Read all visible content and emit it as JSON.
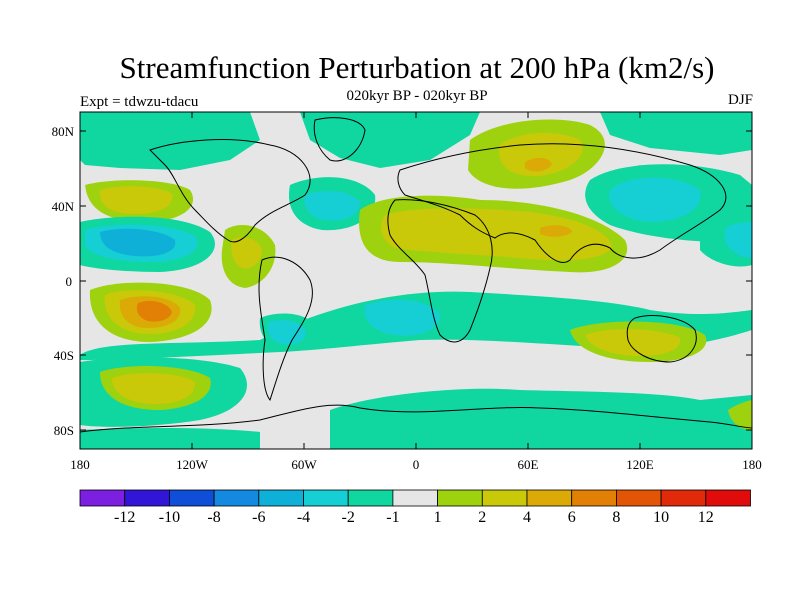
{
  "title": "Streamfunction Perturbation at 200 hPa (km2/s)",
  "subtitle": "020kyr BP - 020kyr BP",
  "experiment": "Expt = tdwzu-tdacu",
  "season": "DJF",
  "y_axis_labels": [
    "80N",
    "40N",
    "0",
    "40S",
    "80S"
  ],
  "x_axis_labels": [
    "180",
    "120W",
    "60W",
    "0",
    "60E",
    "120E",
    "180"
  ],
  "colorbar_labels": [
    "-12",
    "-10",
    "-8",
    "-6",
    "-4",
    "-2",
    "-1",
    "1",
    "2",
    "4",
    "6",
    "8",
    "10",
    "12"
  ],
  "colorbar_colors": [
    "#7b1fe0",
    "#3216d8",
    "#0f4ed6",
    "#138ae0",
    "#0fb0d8",
    "#16cfd4",
    "#10d6a0",
    "#e6e6e6",
    "#9ed20e",
    "#c9c90a",
    "#dcaa06",
    "#e28006",
    "#e25506",
    "#e02a0a",
    "#e00c0c"
  ],
  "fill_colors": {
    "background": "#e6e6e6",
    "neg1": "#10d6a0",
    "neg2": "#16cfd4",
    "neg3": "#0fb0d8",
    "neg4": "#138ae0",
    "pos1": "#9ed20e",
    "pos2": "#c9c90a",
    "pos3": "#dcaa06",
    "pos4": "#e28006"
  }
}
